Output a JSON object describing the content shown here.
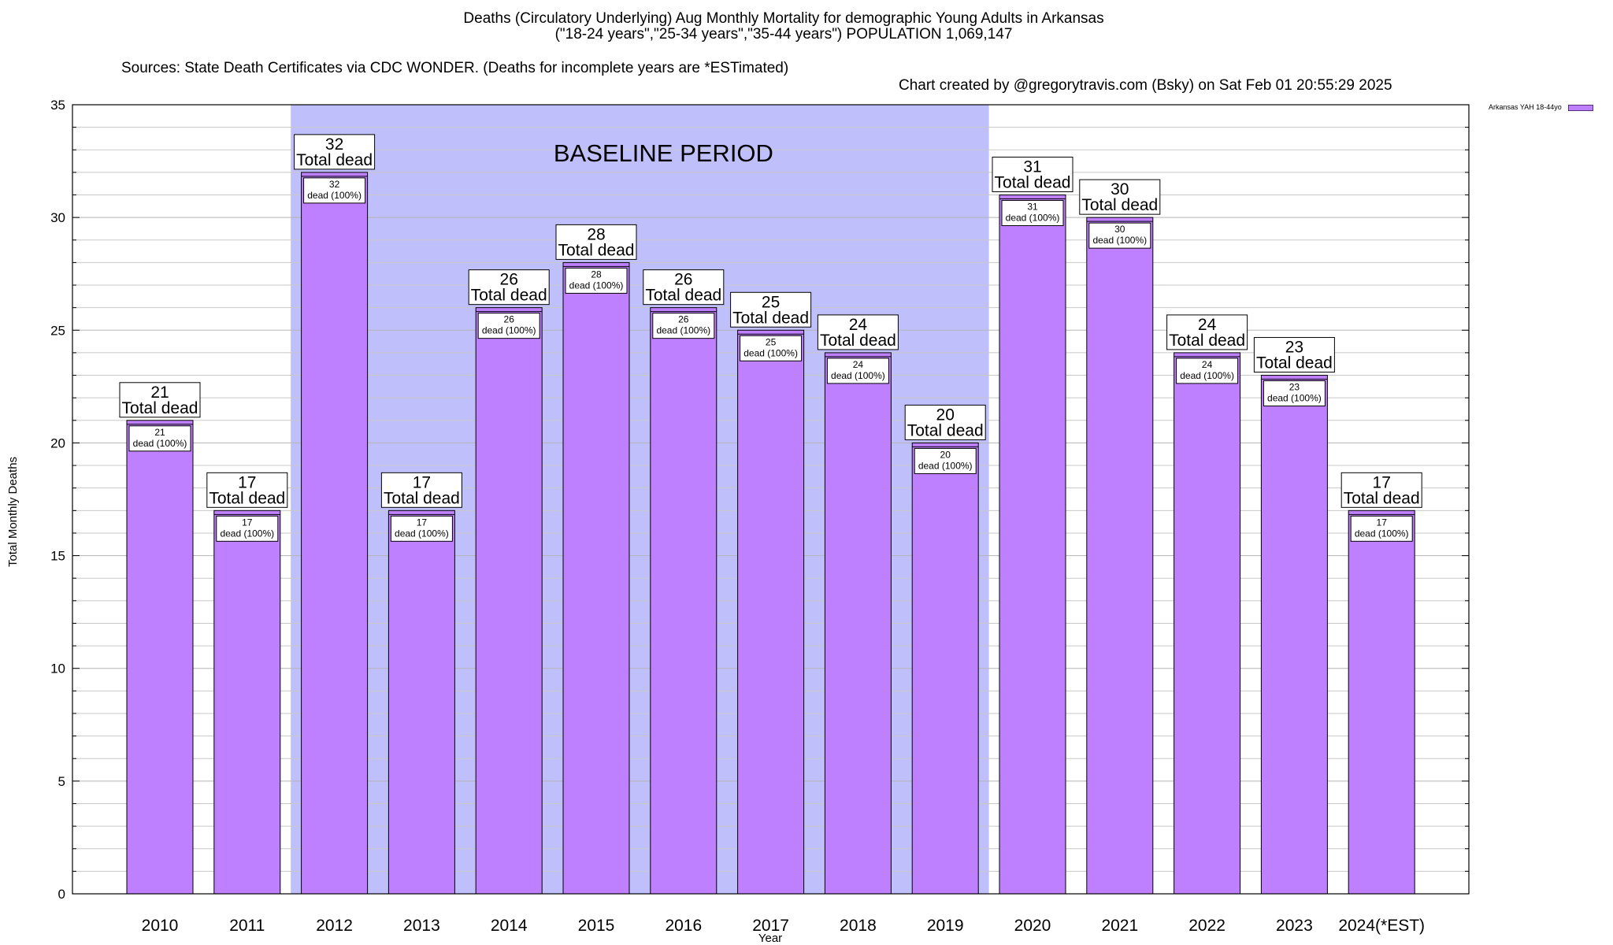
{
  "title_lines": [
    "Deaths (Circulatory Underlying) Aug Monthly Mortality for demographic Young Adults in Arkansas",
    "(\"18-24 years\",\"25-34 years\",\"35-44 years\") POPULATION 1,069,147"
  ],
  "sources": "Sources: State Death Certificates via CDC WONDER. (Deaths for incomplete years are *ESTimated)",
  "credit": "Chart created by @gregorytravis.com (Bsky) on Sat Feb 01 20:55:29 2025",
  "legend": {
    "label": "Arkansas YAH 18-44yo",
    "color": "#bf80ff"
  },
  "chart_data": {
    "type": "bar",
    "title": "Deaths (Circulatory Underlying) Aug Monthly Mortality for demographic Young Adults in Arkansas",
    "subtitle": "(\"18-24 years\",\"25-34 years\",\"35-44 years\") POPULATION 1,069,147",
    "xlabel": "Year",
    "ylabel": "Total Monthly Deaths",
    "ylim": [
      0,
      35
    ],
    "yticks": [
      0,
      5,
      10,
      15,
      20,
      25,
      30,
      35
    ],
    "grid": true,
    "legend_position": "top-right",
    "categories": [
      "2010",
      "2011",
      "2012",
      "2013",
      "2014",
      "2015",
      "2016",
      "2017",
      "2018",
      "2019",
      "2020",
      "2021",
      "2022",
      "2023",
      "2024(*EST)"
    ],
    "series": [
      {
        "name": "Arkansas YAH 18-44yo",
        "color": "#bf80ff",
        "values": [
          21,
          17,
          32,
          17,
          26,
          28,
          26,
          25,
          24,
          20,
          31,
          30,
          24,
          23,
          17
        ]
      }
    ],
    "total_label_suffix": "Total dead",
    "inner_label_suffix": "dead (100%)",
    "baseline_period": {
      "label": "BASELINE PERIOD",
      "from": "2012",
      "to": "2019",
      "color": "#bfbffc"
    }
  }
}
